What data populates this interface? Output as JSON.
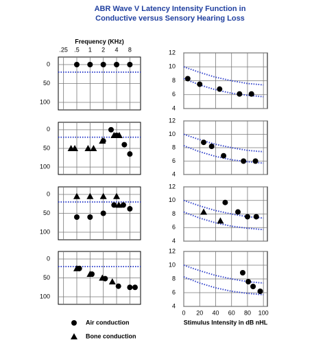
{
  "title": "ABR Wave V Latency Intensity Function in",
  "subtitle": "Conductive versus Sensory Hearing Loss",
  "legend": [
    {
      "name": "Air conduction",
      "marker": "circle"
    },
    {
      "name": "Bone conduction",
      "marker": "triangle"
    }
  ],
  "chart_data": [
    {
      "type": "scatter",
      "xlabel": "Frequency (KHz)",
      "xscale": "log",
      "xlim": [
        0.19,
        14
      ],
      "xticks": [
        {
          "value": 0.25,
          "label": ".25"
        },
        {
          "value": 0.5,
          "label": ".5"
        },
        1,
        2,
        4,
        8
      ],
      "ylim": [
        120,
        -20
      ],
      "yticks": [
        0,
        50,
        100
      ],
      "grid": true,
      "ref_line": 20,
      "ref_color": "#3344cc",
      "series": [
        {
          "marker": "circle",
          "color": "#000000",
          "x": [
            0.5,
            1,
            2,
            4,
            8
          ],
          "values": [
            0,
            0,
            0,
            0,
            0
          ]
        }
      ]
    },
    {
      "type": "scatter",
      "xscale": "log",
      "xlim": [
        0.19,
        14
      ],
      "xticks": [
        0.25,
        0.5,
        1,
        2,
        4,
        8
      ],
      "xtick_labels": false,
      "ylim": [
        120,
        -20
      ],
      "yticks": [
        0,
        50,
        100
      ],
      "grid": true,
      "ref_line": 20,
      "ref_color": "#3344cc",
      "series": [
        {
          "marker": "circle",
          "color": "#000000",
          "x": [
            2,
            3,
            4,
            6,
            8
          ],
          "values": [
            30,
            0,
            15,
            40,
            65
          ]
        },
        {
          "marker": "triangle",
          "color": "#000000",
          "x": [
            0.37,
            0.45,
            0.9,
            1.2,
            1.9,
            3.5,
            4.6
          ],
          "values": [
            50,
            50,
            50,
            50,
            30,
            15,
            15
          ]
        }
      ]
    },
    {
      "type": "scatter",
      "xscale": "log",
      "xlim": [
        0.19,
        14
      ],
      "xticks": [
        0.25,
        0.5,
        1,
        2,
        4,
        8
      ],
      "xtick_labels": false,
      "ylim": [
        120,
        -20
      ],
      "yticks": [
        0,
        50,
        100
      ],
      "grid": true,
      "ref_line": 20,
      "ref_color": "#3344cc",
      "series": [
        {
          "marker": "circle",
          "color": "#000000",
          "x": [
            0.5,
            1,
            2,
            3.5,
            5.7,
            8
          ],
          "values": [
            60,
            60,
            50,
            28,
            28,
            38
          ]
        },
        {
          "marker": "triangle",
          "color": "#000000",
          "x": [
            0.5,
            1,
            2,
            4,
            4.5
          ],
          "values": [
            5,
            5,
            5,
            5,
            28
          ]
        }
      ]
    },
    {
      "type": "scatter",
      "xscale": "log",
      "xlim": [
        0.19,
        14
      ],
      "xticks": [
        0.25,
        0.5,
        1,
        2,
        4,
        8
      ],
      "xtick_labels": false,
      "ylim": [
        120,
        -20
      ],
      "yticks": [
        0,
        50,
        100
      ],
      "grid": true,
      "ref_line": 20,
      "ref_color": "#3344cc",
      "series": [
        {
          "marker": "circle",
          "color": "#000000",
          "x": [
            0.57,
            1.1,
            2.2,
            4.4,
            8,
            10.5
          ],
          "values": [
            25,
            40,
            52,
            72,
            75,
            75
          ]
        },
        {
          "marker": "triangle",
          "color": "#000000",
          "x": [
            0.5,
            1,
            1.9,
            3.2
          ],
          "values": [
            25,
            40,
            50,
            60
          ]
        }
      ]
    },
    {
      "type": "scatter",
      "xlim": [
        0,
        105
      ],
      "xticks": [
        0,
        20,
        40,
        60,
        80,
        100
      ],
      "xtick_labels": false,
      "ylim": [
        4,
        12
      ],
      "yticks": [
        4,
        6,
        8,
        10,
        12
      ],
      "grid": true,
      "series": [
        {
          "style": "dotted",
          "color": "#3344cc",
          "x": [
            0,
            20,
            40,
            60,
            80,
            100
          ],
          "values": [
            10,
            9.2,
            8.5,
            8,
            7.6,
            7.4
          ]
        },
        {
          "style": "dotted",
          "color": "#3344cc",
          "x": [
            0,
            20,
            40,
            60,
            80,
            100
          ],
          "values": [
            8.3,
            7.4,
            6.7,
            6.2,
            5.9,
            5.7
          ]
        },
        {
          "marker": "circle",
          "color": "#000000",
          "x": [
            5,
            20,
            45,
            70,
            85
          ],
          "values": [
            8.3,
            7.5,
            6.8,
            6.1,
            6.1
          ]
        }
      ]
    },
    {
      "type": "scatter",
      "xlim": [
        0,
        105
      ],
      "xticks": [
        0,
        20,
        40,
        60,
        80,
        100
      ],
      "xtick_labels": false,
      "ylim": [
        4,
        12
      ],
      "yticks": [
        4,
        6,
        8,
        10,
        12
      ],
      "grid": true,
      "series": [
        {
          "style": "dotted",
          "color": "#3344cc",
          "x": [
            0,
            20,
            40,
            60,
            80,
            100
          ],
          "values": [
            10,
            9.2,
            8.5,
            8,
            7.6,
            7.4
          ]
        },
        {
          "style": "dotted",
          "color": "#3344cc",
          "x": [
            0,
            20,
            40,
            60,
            80,
            100
          ],
          "values": [
            8.3,
            7.4,
            6.7,
            6.2,
            5.9,
            5.7
          ]
        },
        {
          "marker": "circle",
          "color": "#000000",
          "x": [
            25,
            35,
            50,
            75,
            90
          ],
          "values": [
            8.8,
            8.2,
            6.8,
            6,
            6
          ]
        }
      ]
    },
    {
      "type": "scatter",
      "xlim": [
        0,
        105
      ],
      "xticks": [
        0,
        20,
        40,
        60,
        80,
        100
      ],
      "xtick_labels": false,
      "ylim": [
        4,
        12
      ],
      "yticks": [
        4,
        6,
        8,
        10,
        12
      ],
      "grid": true,
      "series": [
        {
          "style": "dotted",
          "color": "#3344cc",
          "x": [
            0,
            20,
            40,
            60,
            80,
            100
          ],
          "values": [
            10,
            9.2,
            8.5,
            8,
            7.6,
            7.4
          ]
        },
        {
          "style": "dotted",
          "color": "#3344cc",
          "x": [
            0,
            20,
            40,
            60,
            80,
            100
          ],
          "values": [
            8.3,
            7.4,
            6.7,
            6.2,
            5.9,
            5.7
          ]
        },
        {
          "marker": "circle",
          "color": "#000000",
          "x": [
            52,
            68,
            80,
            91
          ],
          "values": [
            9.7,
            8.3,
            7.6,
            7.6
          ]
        },
        {
          "marker": "triangle",
          "color": "#000000",
          "x": [
            25,
            46
          ],
          "values": [
            8.3,
            7.0
          ]
        }
      ]
    },
    {
      "type": "scatter",
      "xlabel": "Stimulus Intensity in dB nHL",
      "xlim": [
        0,
        105
      ],
      "xticks": [
        0,
        20,
        40,
        60,
        80,
        100
      ],
      "ylim": [
        4,
        12
      ],
      "yticks": [
        4,
        6,
        8,
        10,
        12
      ],
      "grid": true,
      "series": [
        {
          "style": "dotted",
          "color": "#3344cc",
          "x": [
            0,
            20,
            40,
            60,
            80,
            100
          ],
          "values": [
            10,
            9.2,
            8.5,
            8,
            7.6,
            7.4
          ]
        },
        {
          "style": "dotted",
          "color": "#3344cc",
          "x": [
            0,
            20,
            40,
            60,
            80,
            100
          ],
          "values": [
            8.3,
            7.4,
            6.7,
            6.2,
            5.9,
            5.7
          ]
        },
        {
          "marker": "circle",
          "color": "#000000",
          "x": [
            74,
            81,
            87,
            96
          ],
          "values": [
            8.9,
            7.6,
            6.9,
            6.2
          ]
        }
      ]
    }
  ]
}
